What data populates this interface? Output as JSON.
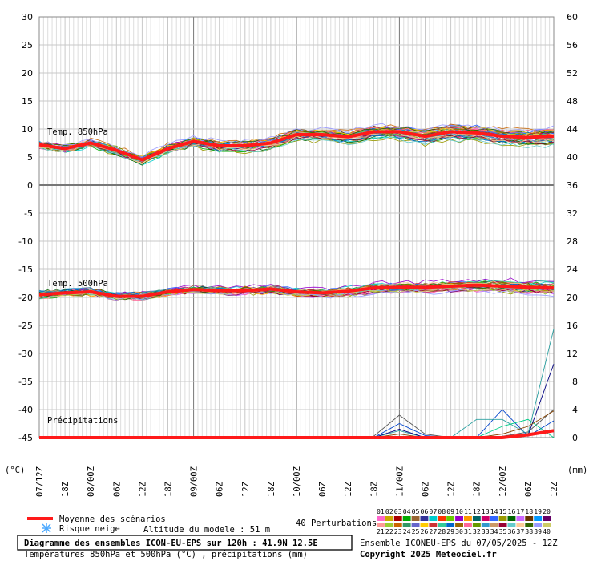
{
  "chart_data": {
    "type": "line",
    "x_labels": [
      "07/12Z",
      "18Z",
      "08/00Z",
      "06Z",
      "12Z",
      "18Z",
      "09/00Z",
      "06Z",
      "12Z",
      "18Z",
      "10/00Z",
      "06Z",
      "12Z",
      "18Z",
      "11/00Z",
      "06Z",
      "12Z",
      "18Z",
      "12/00Z",
      "06Z",
      "12Z"
    ],
    "y_left_ticks": [
      "30",
      "25",
      "20",
      "15",
      "10",
      "5",
      "0",
      "-5",
      "-10",
      "-15",
      "-20",
      "-25",
      "-30",
      "-35",
      "-40",
      "-45"
    ],
    "y_right_ticks": [
      "60",
      "56",
      "52",
      "48",
      "44",
      "40",
      "36",
      "32",
      "28",
      "24",
      "20",
      "16",
      "12",
      "8",
      "4",
      "0"
    ],
    "y_left_unit": "(°C)",
    "y_right_unit": "(mm)",
    "ylim_left": [
      -45,
      30
    ],
    "ylim_right": [
      0,
      60
    ],
    "series_label_850": "Temp. 850hPa",
    "series_label_500": "Temp. 500hPa",
    "series_label_precip": "Précipitations",
    "mean_850": [
      7.2,
      6.5,
      7.5,
      6.2,
      4.5,
      6.5,
      7.8,
      7.0,
      7.0,
      7.5,
      9.0,
      9.0,
      8.6,
      9.5,
      9.5,
      8.7,
      9.5,
      9.3,
      8.7,
      8.5,
      8.7
    ],
    "mean_500": [
      -19.5,
      -19.2,
      -19.0,
      -19.8,
      -19.8,
      -19.0,
      -18.6,
      -18.8,
      -18.8,
      -18.5,
      -19.0,
      -19.2,
      -18.9,
      -18.3,
      -18.2,
      -18.2,
      -18.0,
      -17.8,
      -18.0,
      -18.2,
      -18.3
    ],
    "mean_precip_mm": [
      0,
      0,
      0,
      0,
      0,
      0,
      0,
      0,
      0,
      0,
      0,
      0,
      0,
      0,
      0,
      0,
      0,
      0,
      0,
      0.4,
      1.0
    ],
    "precip_spikes": [
      {
        "color": "#555555",
        "values": [
          0,
          0,
          0,
          0,
          0,
          0,
          0,
          0,
          0,
          0,
          0,
          0,
          0,
          0.2,
          3.2,
          0.5,
          0,
          0,
          0.2,
          0.8,
          4.0
        ]
      },
      {
        "color": "#0044cc",
        "values": [
          0,
          0,
          0,
          0,
          0,
          0,
          0,
          0,
          0,
          0,
          0,
          0,
          0,
          0,
          2.0,
          0.3,
          0,
          0,
          4.0,
          0.2,
          2.4
        ]
      },
      {
        "color": "#2aa0a0",
        "values": [
          0,
          0,
          0,
          0,
          0,
          0,
          0,
          0,
          0,
          0,
          0,
          0,
          0,
          0,
          1.0,
          0,
          0,
          2.6,
          2.6,
          0.5,
          15.5
        ]
      },
      {
        "color": "#00cc88",
        "values": [
          0,
          0,
          0,
          0,
          0,
          0,
          0,
          0,
          0,
          0,
          0,
          0,
          0,
          0,
          0,
          0,
          0,
          0,
          1.6,
          2.6,
          0
        ]
      },
      {
        "color": "#000080",
        "values": [
          0,
          0,
          0,
          0,
          0,
          0,
          0,
          0,
          0,
          0,
          0,
          0,
          0,
          0,
          1.2,
          0,
          0,
          0,
          0,
          0.3,
          10.5
        ]
      },
      {
        "color": "#884400",
        "values": [
          0,
          0,
          0,
          0,
          0,
          0,
          0,
          0,
          0,
          0,
          0,
          0,
          0,
          0,
          0.5,
          0,
          0,
          0,
          0.5,
          1.6,
          3.8
        ]
      }
    ]
  },
  "legend": {
    "mean_label": "Moyenne des scénarios",
    "snow_label": "Risque neige",
    "altitude_label": "Altitude du modele : 51 m",
    "perturbations_label": "40 Perturbations",
    "palette_top": [
      "01",
      "02",
      "03",
      "04",
      "05",
      "06",
      "07",
      "08",
      "09",
      "10",
      "11",
      "12",
      "13",
      "14",
      "15",
      "16",
      "17",
      "18",
      "19",
      "20"
    ],
    "palette_bottom": [
      "21",
      "22",
      "23",
      "24",
      "25",
      "26",
      "27",
      "28",
      "29",
      "30",
      "31",
      "32",
      "33",
      "34",
      "35",
      "36",
      "37",
      "38",
      "39",
      "40"
    ],
    "colors_top": [
      "#ff66cc",
      "#ccaa00",
      "#aa0000",
      "#00aa00",
      "#996633",
      "#333399",
      "#00cccc",
      "#ff3300",
      "#66cc00",
      "#9900cc",
      "#ff9900",
      "#006666",
      "#cc0066",
      "#3366ff",
      "#999900",
      "#006600",
      "#cc66ff",
      "#663300",
      "#0099ff",
      "#660066"
    ],
    "colors_bottom": [
      "#ff9999",
      "#99cc33",
      "#cc6600",
      "#339966",
      "#6666cc",
      "#ffcc00",
      "#cc3333",
      "#33cc99",
      "#0066cc",
      "#996600",
      "#ff6699",
      "#669900",
      "#3399cc",
      "#cc9966",
      "#990033",
      "#66cccc",
      "#ffcc99",
      "#336600",
      "#9999ff",
      "#cccc66"
    ]
  },
  "footer": {
    "title": "Diagramme des ensembles ICON-EU-EPS sur 120h : 41.9N 12.5E",
    "subtitle": "Températures 850hPa et 500hPa (°C) , précipitations (mm)",
    "run_info": "Ensemble ICONEU-EPS du 07/05/2025 - 12Z",
    "copyright": "Copyright 2025 Meteociel.fr"
  },
  "style": {
    "grid_color": "#c8c8c8",
    "major_grid_color": "#777777",
    "mean_color": "#ff1a1a",
    "snow_color": "#4aa8ff"
  }
}
